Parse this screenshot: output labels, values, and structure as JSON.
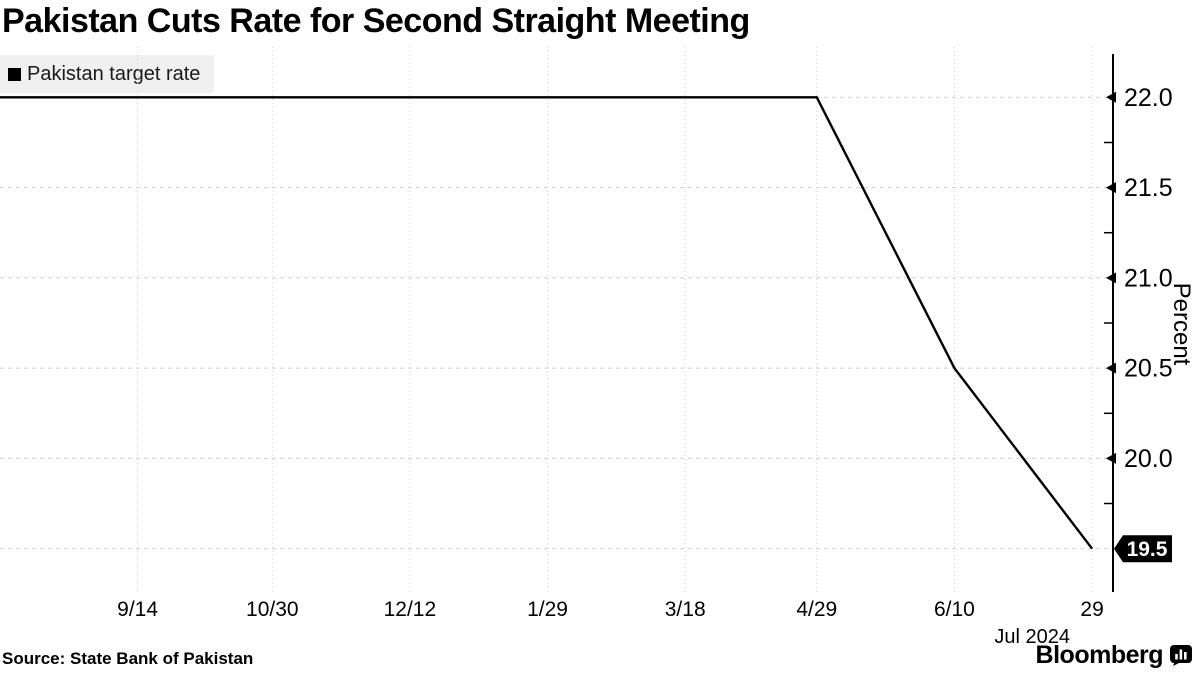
{
  "title": "Pakistan Cuts Rate for Second Straight Meeting",
  "legend": {
    "swatch": "black-square",
    "label": "Pakistan target rate"
  },
  "y_axis": {
    "unit_label": "Percent",
    "tick_labels": [
      "22.0",
      "21.5",
      "21.0",
      "20.5",
      "20.0"
    ],
    "current_value_label": "19.5"
  },
  "x_axis": {
    "tick_labels": [
      "9/14",
      "10/30",
      "12/12",
      "1/29",
      "3/18",
      "4/29",
      "6/10",
      "29"
    ],
    "month_label": "Jul 2024"
  },
  "source": "Source: State Bank of Pakistan",
  "brand": {
    "wordmark": "Bloomberg",
    "icon": "bloomberg-chart-bubble-icon"
  },
  "colors": {
    "line": "#000000",
    "axis": "#000000",
    "grid": "#cfcfcf",
    "legend_bg": "#f0f0f0",
    "tag_bg": "#000000",
    "tag_text": "#ffffff"
  },
  "chart_data": {
    "type": "line",
    "title": "Pakistan Cuts Rate for Second Straight Meeting",
    "ylabel": "Percent",
    "ylim": [
      19.26,
      22.24
    ],
    "yticks_major": [
      22.0,
      21.5,
      21.0,
      20.5,
      20.0,
      19.5
    ],
    "yticks_minor": [
      21.75,
      21.25,
      20.75,
      20.25,
      19.75
    ],
    "grid": true,
    "legend_position": "top-left",
    "last_value": 19.5,
    "x_domain_days": [
      0,
      372
    ],
    "x_ticks": [
      {
        "label": "9/14",
        "day": 46
      },
      {
        "label": "10/30",
        "day": 91
      },
      {
        "label": "12/12",
        "day": 137
      },
      {
        "label": "1/29",
        "day": 183
      },
      {
        "label": "3/18",
        "day": 229
      },
      {
        "label": "4/29",
        "day": 273
      },
      {
        "label": "6/10",
        "day": 319
      },
      {
        "label": "29",
        "day": 365
      }
    ],
    "month_label": {
      "label": "Jul 2024",
      "day": 345
    },
    "series": [
      {
        "name": "Pakistan target rate",
        "color": "#000000",
        "points": [
          {
            "date": "start",
            "day": 0,
            "value": 22.0
          },
          {
            "date": "9/14/2023",
            "day": 46,
            "value": 22.0
          },
          {
            "date": "10/30/2023",
            "day": 91,
            "value": 22.0
          },
          {
            "date": "12/12/2023",
            "day": 137,
            "value": 22.0
          },
          {
            "date": "1/29/2024",
            "day": 183,
            "value": 22.0
          },
          {
            "date": "3/18/2024",
            "day": 229,
            "value": 22.0
          },
          {
            "date": "4/29/2024",
            "day": 273,
            "value": 22.0
          },
          {
            "date": "6/10/2024",
            "day": 319,
            "value": 20.5
          },
          {
            "date": "7/29/2024",
            "day": 365,
            "value": 19.5
          }
        ]
      }
    ]
  }
}
